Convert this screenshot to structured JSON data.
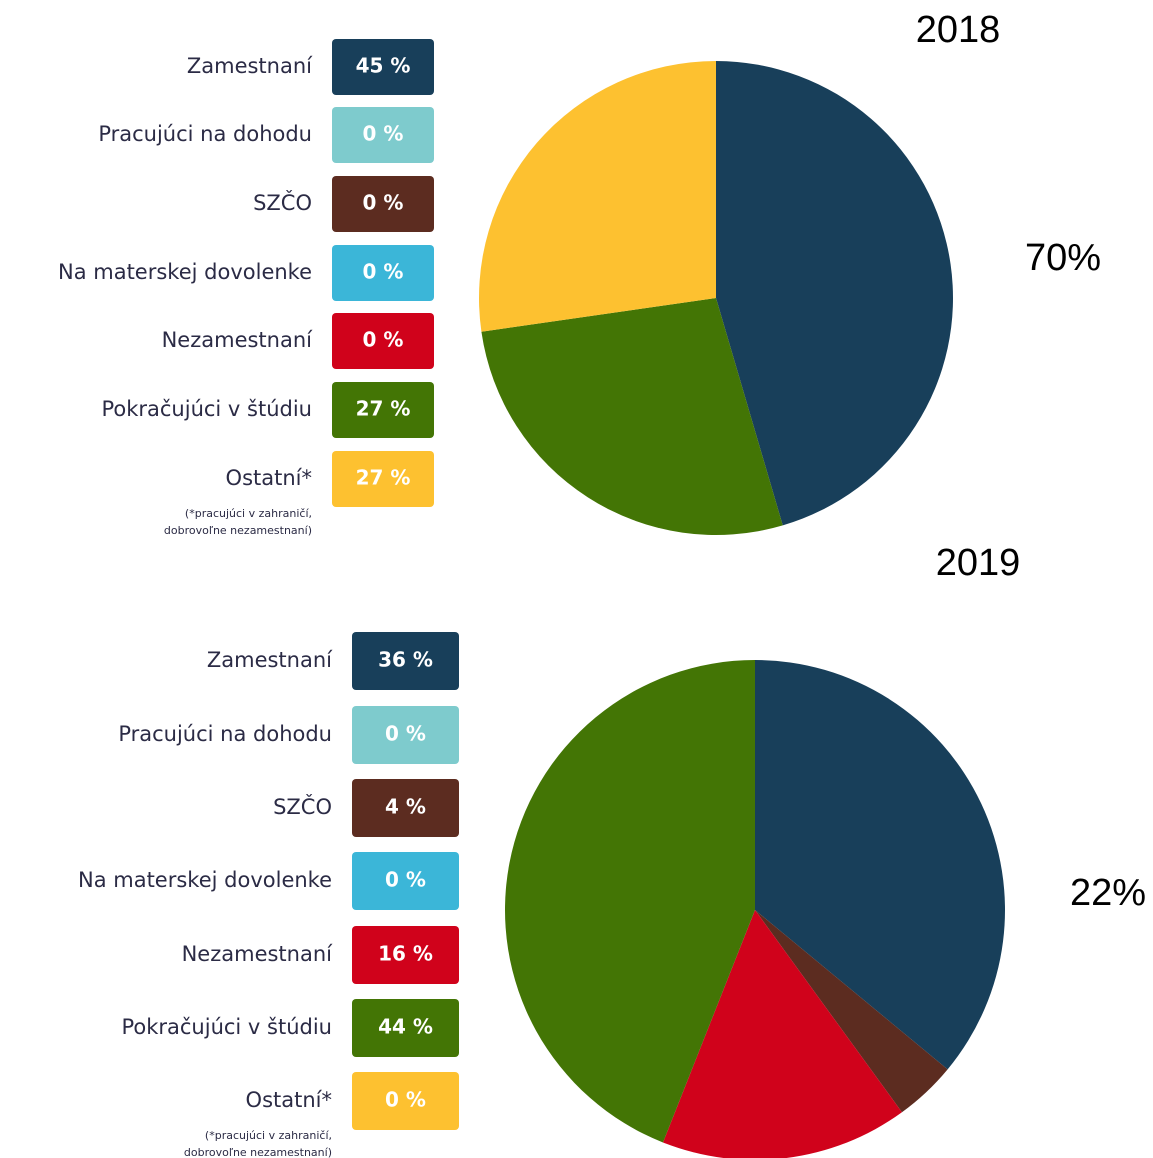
{
  "chart_data": [
    {
      "type": "pie",
      "title": "2018",
      "annotation": "70%",
      "categories": [
        "Zamestnaní",
        "Pracujúci na dohodu",
        "SZČO",
        "Na materskej dovolenke",
        "Nezamestnaní",
        "Pokračujúci v štúdiu",
        "Ostatní*"
      ],
      "values": [
        45,
        0,
        0,
        0,
        0,
        27,
        27
      ],
      "value_labels": [
        "45 %",
        "0 %",
        "0 %",
        "0 %",
        "0 %",
        "27 %",
        "27 %"
      ],
      "colors": [
        "#183f5a",
        "#7ecbcd",
        "#5c2c20",
        "#3bb6d8",
        "#d0021b",
        "#437505",
        "#fdc130"
      ],
      "note": [
        "(*pracujúci v zahraničí,",
        "dobrovoľne nezamestnaní)"
      ]
    },
    {
      "type": "pie",
      "title": "2019",
      "annotation": "22%",
      "categories": [
        "Zamestnaní",
        "Pracujúci na dohodu",
        "SZČO",
        "Na materskej dovolenke",
        "Nezamestnaní",
        "Pokračujúci v štúdiu",
        "Ostatní*"
      ],
      "values": [
        36,
        0,
        4,
        0,
        16,
        44,
        0
      ],
      "value_labels": [
        "36 %",
        "0 %",
        "4 %",
        "0 %",
        "16 %",
        "44 %",
        "0 %"
      ],
      "colors": [
        "#183f5a",
        "#7ecbcd",
        "#5c2c20",
        "#3bb6d8",
        "#d0021b",
        "#437505",
        "#fdc130"
      ],
      "note": [
        "(*pracujúci v zahraničí,",
        "dobrovoľne nezamestnaní)"
      ]
    }
  ]
}
